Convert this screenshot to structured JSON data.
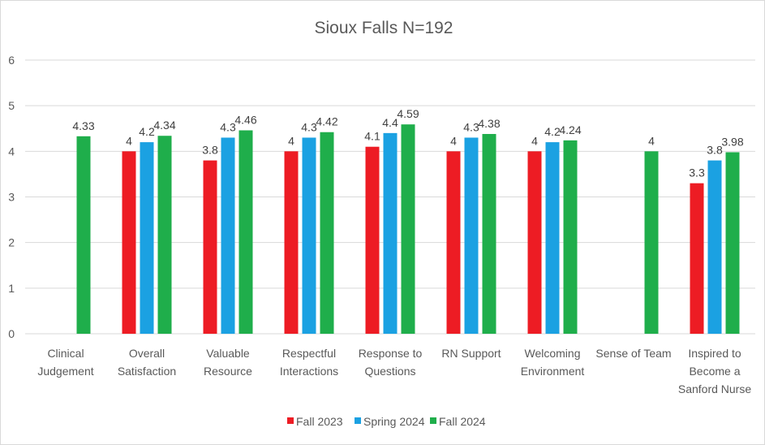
{
  "chart_data": {
    "type": "bar",
    "title": "Sioux Falls  N=192",
    "xlabel": "",
    "ylabel": "",
    "ylim": [
      0,
      6
    ],
    "yticks": [
      0,
      1,
      2,
      3,
      4,
      5,
      6
    ],
    "grid": true,
    "legend_position": "bottom",
    "categories": [
      [
        "Clinical",
        "Judgement"
      ],
      [
        "Overall",
        "Satisfaction"
      ],
      [
        "Valuable",
        "Resource"
      ],
      [
        "Respectful",
        "Interactions"
      ],
      [
        "Response to",
        "Questions"
      ],
      [
        "RN Support"
      ],
      [
        "Welcoming",
        "Environment"
      ],
      [
        "Sense of Team"
      ],
      [
        "Inspired to",
        "Become a",
        "Sanford Nurse"
      ]
    ],
    "series": [
      {
        "name": "Fall 2023",
        "color": "#ed1c24",
        "values": [
          null,
          4,
          3.8,
          4,
          4.1,
          4,
          4,
          null,
          3.3
        ],
        "labels": [
          null,
          "4",
          "3.8",
          "4",
          "4.1",
          "4",
          "4",
          null,
          "3.3"
        ]
      },
      {
        "name": "Spring 2024",
        "color": "#1ba1e2",
        "values": [
          null,
          4.2,
          4.3,
          4.3,
          4.4,
          4.3,
          4.2,
          null,
          3.8
        ],
        "labels": [
          null,
          "4.2",
          "4.3",
          "4.3",
          "4.4",
          "4.3",
          "4.2",
          null,
          "3.8"
        ]
      },
      {
        "name": "Fall 2024",
        "color": "#1fae4b",
        "values": [
          4.33,
          4.34,
          4.46,
          4.42,
          4.59,
          4.38,
          4.24,
          4,
          3.98
        ],
        "labels": [
          "4.33",
          "4.34",
          "4.46",
          "4.42",
          "4.59",
          "4.38",
          "4.24",
          "4",
          "3.98"
        ]
      }
    ]
  }
}
